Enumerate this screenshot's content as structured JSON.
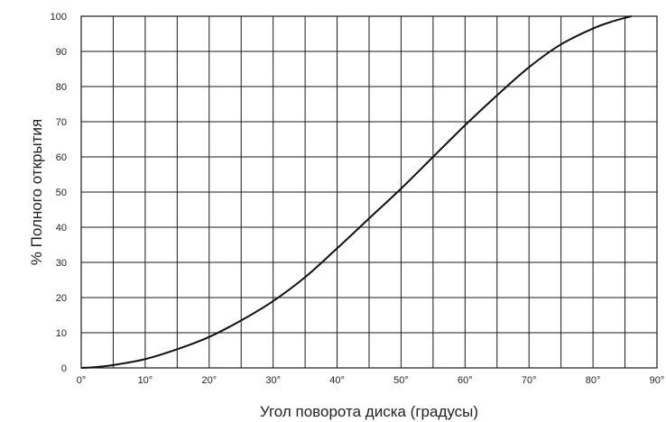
{
  "chart_data": {
    "type": "line",
    "title": "",
    "xlabel": "Угол поворота диска (градусы)",
    "ylabel": "% Полного открытия",
    "xlim": [
      0,
      90
    ],
    "ylim": [
      0,
      100
    ],
    "x_ticks": [
      0,
      10,
      20,
      30,
      40,
      50,
      60,
      70,
      80,
      90
    ],
    "x_tick_labels": [
      "0°",
      "10°",
      "20°",
      "30°",
      "40°",
      "50°",
      "60°",
      "70°",
      "80°",
      "90°"
    ],
    "y_ticks": [
      0,
      10,
      20,
      30,
      40,
      50,
      60,
      70,
      80,
      90,
      100
    ],
    "y_tick_labels": [
      "0",
      "10",
      "20",
      "30",
      "40",
      "50",
      "60",
      "70",
      "80",
      "90",
      "100"
    ],
    "x_minor_step": 5,
    "grid": true,
    "legend": "none",
    "series": [
      {
        "color": "#111111",
        "x": [
          0,
          2,
          5,
          10,
          15,
          20,
          25,
          30,
          35,
          40,
          45,
          50,
          55,
          60,
          65,
          70,
          75,
          80,
          83,
          86
        ],
        "y": [
          0,
          0.2,
          0.8,
          2.5,
          5.3,
          8.8,
          13.5,
          19,
          25.8,
          34,
          42.5,
          51,
          60,
          69,
          77.5,
          85.5,
          92,
          96.5,
          98.5,
          100
        ]
      }
    ]
  }
}
